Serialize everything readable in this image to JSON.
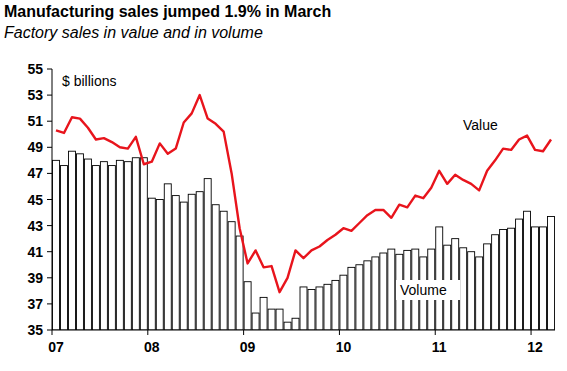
{
  "chart_data": {
    "type": "bar",
    "title": "Manufacturing sales jumped 1.9% in March",
    "subtitle": "Factory sales in value and in volume",
    "y_label": "$ billions",
    "categories": [
      "07",
      null,
      null,
      null,
      null,
      null,
      null,
      null,
      null,
      null,
      null,
      null,
      "08",
      null,
      null,
      null,
      null,
      null,
      null,
      null,
      null,
      null,
      null,
      null,
      "09",
      null,
      null,
      null,
      null,
      null,
      null,
      null,
      null,
      null,
      null,
      null,
      "10",
      null,
      null,
      null,
      null,
      null,
      null,
      null,
      null,
      null,
      null,
      null,
      "11",
      null,
      null,
      null,
      null,
      null,
      null,
      null,
      null,
      null,
      null,
      null,
      "12",
      null,
      null
    ],
    "series": [
      {
        "name": "Volume",
        "type": "bar",
        "color": "#ffffff",
        "values": [
          48.0,
          47.6,
          48.7,
          48.5,
          48.1,
          47.6,
          47.9,
          47.6,
          48.0,
          47.9,
          48.2,
          48.2,
          45.1,
          45.0,
          46.2,
          45.3,
          44.8,
          45.4,
          45.6,
          46.6,
          44.6,
          44.1,
          43.3,
          42.2,
          38.7,
          36.3,
          37.5,
          36.6,
          36.6,
          35.6,
          35.9,
          38.3,
          38.1,
          38.3,
          38.5,
          38.8,
          39.2,
          39.8,
          40.0,
          40.3,
          40.6,
          40.9,
          41.2,
          40.8,
          41.1,
          41.2,
          40.6,
          41.2,
          42.9,
          41.5,
          42.0,
          41.3,
          41.0,
          40.6,
          41.6,
          42.3,
          42.7,
          42.8,
          43.5,
          44.1,
          42.9,
          42.9,
          43.7
        ]
      },
      {
        "name": "Value",
        "type": "line",
        "color": "#e8141c",
        "values": [
          50.3,
          50.1,
          51.3,
          51.2,
          50.5,
          49.6,
          49.7,
          49.4,
          49.0,
          48.9,
          49.8,
          47.7,
          47.9,
          49.3,
          48.5,
          48.9,
          50.9,
          51.6,
          53.0,
          51.2,
          50.8,
          50.2,
          47.0,
          42.8,
          40.1,
          41.1,
          39.8,
          39.9,
          37.9,
          39.0,
          41.1,
          40.5,
          41.1,
          41.4,
          41.9,
          42.3,
          42.8,
          42.6,
          43.2,
          43.8,
          44.2,
          44.2,
          43.6,
          44.6,
          44.4,
          45.3,
          45.1,
          45.9,
          47.2,
          46.2,
          46.9,
          46.5,
          46.2,
          45.7,
          47.2,
          48.0,
          48.9,
          48.8,
          49.6,
          49.9,
          48.8,
          48.7,
          49.6
        ]
      }
    ],
    "ylim": [
      35,
      55
    ],
    "yticks": [
      35,
      37,
      39,
      41,
      43,
      45,
      47,
      49,
      51,
      53,
      55
    ],
    "grid": false
  }
}
